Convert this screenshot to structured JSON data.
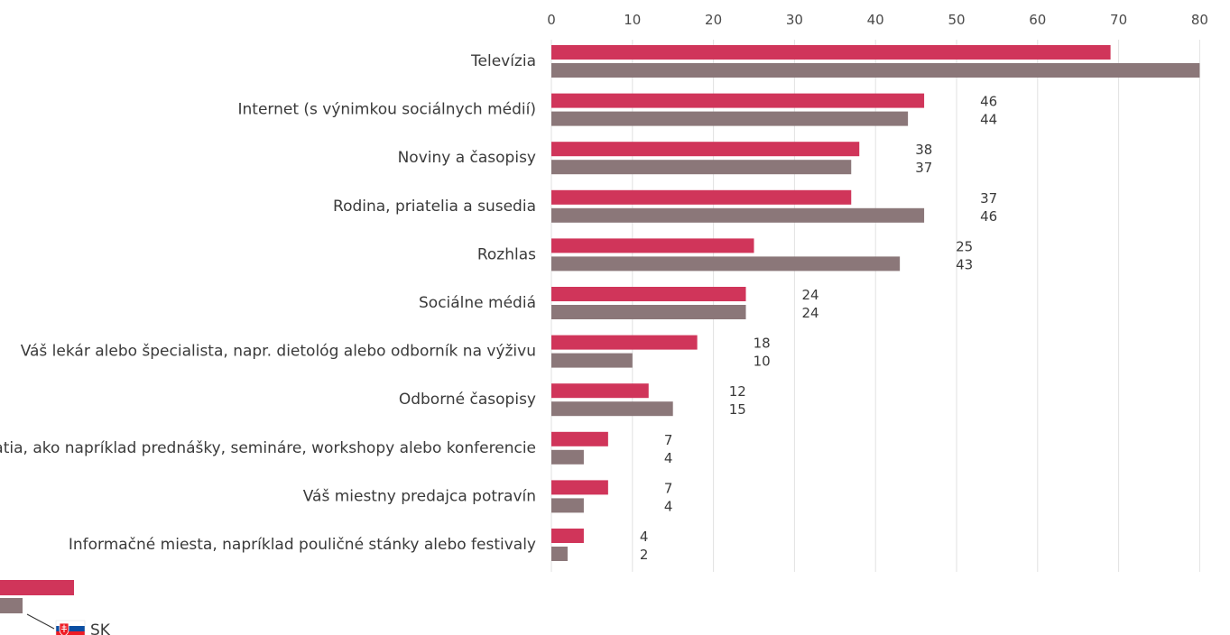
{
  "chart_data": {
    "type": "bar",
    "orientation": "horizontal",
    "title": "",
    "xlabel": "",
    "ylabel": "",
    "xlim": [
      0,
      80
    ],
    "ticks": [
      0,
      10,
      20,
      30,
      40,
      50,
      60,
      70,
      80
    ],
    "grid": true,
    "legend_position": "bottom-left",
    "categories": [
      "Televízia",
      "Internet (s výnimkou sociálnych médií)",
      "Noviny a časopisy",
      "Rodina, priatelia a susedia",
      "Rozhlas",
      "Sociálne médiá",
      "Váš lekár alebo špecialista, napr. dietológ alebo odborník na výživu",
      "Odborné časopisy",
      "Podujatia, ako napríklad prednášky, semináre, workshopy alebo konferencie",
      "Váš miestny predajca potravín",
      "Informačné miesta, napríklad pouličné stánky alebo festivaly"
    ],
    "series": [
      {
        "values": [
          69,
          46,
          38,
          37,
          25,
          24,
          18,
          12,
          7,
          7,
          4
        ],
        "color": "#d0355a"
      },
      {
        "values": [
          80,
          44,
          37,
          46,
          43,
          24,
          10,
          15,
          4,
          4,
          2
        ],
        "color": "#8b7779"
      }
    ],
    "legend": {
      "label": "SK",
      "flag_icon": "slovakia-flag-icon",
      "colors": [
        "#d0355a",
        "#8b7779"
      ]
    },
    "grid_color": "#e2e2e2"
  }
}
